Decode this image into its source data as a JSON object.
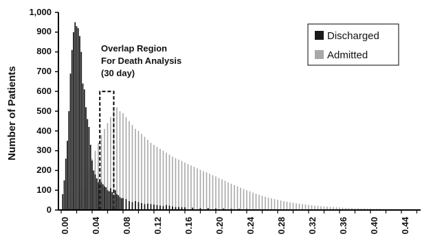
{
  "chart_data": {
    "type": "bar",
    "title": "",
    "xlabel": "",
    "ylabel": "Number of Patients",
    "xlim": [
      0,
      0.5
    ],
    "ylim": [
      0,
      1000
    ],
    "x_ticks": [
      "0.00",
      "0.04",
      "0.08",
      "0.12",
      "0.16",
      "0.20",
      "0.24",
      "0.28",
      "0.32",
      "0.36",
      "0.40",
      "0.44"
    ],
    "y_ticks": [
      "0",
      "100",
      "200",
      "300",
      "400",
      "500",
      "600",
      "700",
      "800",
      "900",
      "1,000"
    ],
    "grid": false,
    "legend_position": "top-right",
    "annotation": {
      "lines": [
        "Overlap Region",
        "For Death Analysis",
        "(30 day)"
      ],
      "bracket_x": [
        0.05,
        0.068
      ],
      "bracket_top": 600
    },
    "series": [
      {
        "name": "Discharged",
        "color": "#1a1a1a",
        "x": [
          0.002,
          0.004,
          0.006,
          0.008,
          0.01,
          0.012,
          0.014,
          0.016,
          0.018,
          0.02,
          0.022,
          0.024,
          0.026,
          0.028,
          0.03,
          0.032,
          0.034,
          0.036,
          0.038,
          0.04,
          0.042,
          0.044,
          0.046,
          0.048,
          0.05,
          0.052,
          0.054,
          0.056,
          0.058,
          0.06,
          0.062,
          0.064,
          0.066,
          0.068,
          0.07,
          0.072,
          0.074,
          0.076,
          0.078,
          0.08,
          0.084,
          0.088,
          0.092,
          0.096,
          0.1,
          0.104,
          0.108,
          0.112,
          0.116,
          0.12,
          0.124,
          0.128,
          0.132,
          0.136,
          0.14,
          0.144,
          0.148,
          0.152,
          0.156,
          0.16,
          0.17,
          0.18,
          0.19,
          0.2,
          0.21,
          0.22,
          0.23,
          0.24,
          0.25,
          0.26,
          0.27,
          0.28
        ],
        "values": [
          80,
          150,
          260,
          350,
          500,
          690,
          810,
          900,
          950,
          930,
          920,
          880,
          800,
          640,
          610,
          520,
          460,
          420,
          330,
          250,
          200,
          180,
          160,
          140,
          145,
          140,
          130,
          120,
          115,
          100,
          95,
          110,
          90,
          70,
          100,
          80,
          75,
          65,
          60,
          60,
          55,
          45,
          40,
          45,
          40,
          35,
          30,
          32,
          30,
          28,
          25,
          22,
          20,
          25,
          22,
          18,
          15,
          15,
          14,
          14,
          12,
          10,
          10,
          8,
          8,
          6,
          6,
          5,
          4,
          4,
          3,
          3
        ]
      },
      {
        "name": "Admitted",
        "color": "#a8a8a8",
        "x": [
          0.02,
          0.024,
          0.028,
          0.032,
          0.036,
          0.04,
          0.044,
          0.048,
          0.052,
          0.056,
          0.06,
          0.064,
          0.068,
          0.072,
          0.076,
          0.08,
          0.084,
          0.088,
          0.092,
          0.096,
          0.1,
          0.104,
          0.108,
          0.112,
          0.116,
          0.12,
          0.124,
          0.128,
          0.132,
          0.136,
          0.14,
          0.144,
          0.148,
          0.152,
          0.156,
          0.16,
          0.164,
          0.168,
          0.172,
          0.176,
          0.18,
          0.184,
          0.188,
          0.192,
          0.196,
          0.2,
          0.204,
          0.208,
          0.212,
          0.216,
          0.22,
          0.224,
          0.228,
          0.232,
          0.236,
          0.24,
          0.244,
          0.248,
          0.252,
          0.256,
          0.26,
          0.264,
          0.268,
          0.272,
          0.276,
          0.28,
          0.284,
          0.288,
          0.292,
          0.296,
          0.3,
          0.304,
          0.308,
          0.312,
          0.316,
          0.32,
          0.324,
          0.328,
          0.332,
          0.336,
          0.34,
          0.344,
          0.348,
          0.352,
          0.356,
          0.36,
          0.364,
          0.368,
          0.372,
          0.376,
          0.38,
          0.384,
          0.388,
          0.392,
          0.396,
          0.4,
          0.404,
          0.408,
          0.412,
          0.416,
          0.42,
          0.424,
          0.428,
          0.432,
          0.436,
          0.44,
          0.444,
          0.448,
          0.452,
          0.456,
          0.46,
          0.464,
          0.468,
          0.472,
          0.476,
          0.48,
          0.484,
          0.488,
          0.492,
          0.496
        ],
        "values": [
          20,
          60,
          110,
          160,
          210,
          260,
          300,
          340,
          380,
          410,
          440,
          470,
          510,
          520,
          500,
          490,
          470,
          450,
          430,
          410,
          400,
          385,
          370,
          355,
          340,
          330,
          320,
          310,
          300,
          290,
          280,
          270,
          262,
          255,
          248,
          240,
          232,
          225,
          218,
          210,
          203,
          196,
          190,
          183,
          176,
          170,
          162,
          155,
          148,
          140,
          133,
          126,
          120,
          113,
          106,
          100,
          94,
          88,
          82,
          77,
          72,
          67,
          63,
          59,
          55,
          52,
          48,
          45,
          42,
          39,
          37,
          34,
          32,
          30,
          28,
          26,
          24,
          22,
          21,
          19,
          18,
          17,
          16,
          15,
          14,
          13,
          12,
          11,
          10,
          10,
          9,
          9,
          8,
          8,
          7,
          7,
          6,
          6,
          6,
          5,
          5,
          5,
          4,
          4,
          4,
          4,
          3,
          3,
          3,
          3,
          3,
          2,
          2,
          2,
          2,
          2,
          2,
          2,
          1,
          1
        ]
      }
    ]
  }
}
